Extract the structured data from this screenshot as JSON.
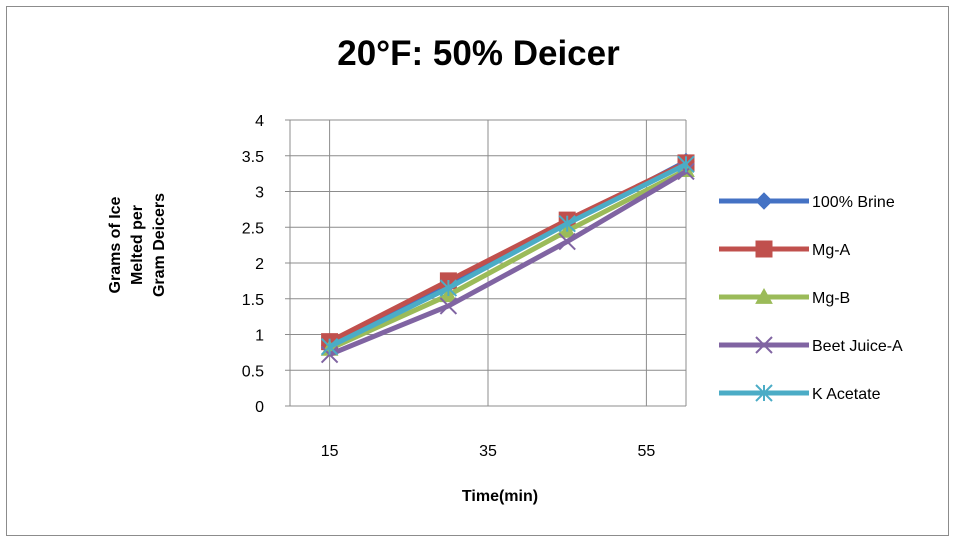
{
  "chart_data": {
    "type": "line",
    "title": "20°F: 50% Deicer",
    "xlabel": "Time(min)",
    "ylabel": "Grams of Ice\nMelted per\nGram Deicers",
    "x": [
      15,
      30,
      45,
      60
    ],
    "x_ticks": [
      "15",
      "35",
      "55"
    ],
    "x_tick_values": [
      15,
      35,
      55
    ],
    "xlim": [
      10,
      60
    ],
    "ylim": [
      0,
      4
    ],
    "y_ticks": [
      "0",
      "0.5",
      "1",
      "1.5",
      "2",
      "2.5",
      "3",
      "3.5",
      "4"
    ],
    "y_tick_values": [
      0,
      0.5,
      1,
      1.5,
      2,
      2.5,
      3,
      3.5,
      4
    ],
    "grid": true,
    "legend_position": "right",
    "series": [
      {
        "name": "100% Brine",
        "values": [
          0.85,
          1.7,
          2.55,
          3.42
        ],
        "color": "#4472C4",
        "marker": "diamond"
      },
      {
        "name": "Mg-A",
        "values": [
          0.9,
          1.75,
          2.6,
          3.4
        ],
        "color": "#C0504D",
        "marker": "square"
      },
      {
        "name": "Mg-B",
        "values": [
          0.8,
          1.55,
          2.45,
          3.3
        ],
        "color": "#9BBB59",
        "marker": "triangle"
      },
      {
        "name": "Beet Juice-A",
        "values": [
          0.72,
          1.4,
          2.3,
          3.28
        ],
        "color": "#8064A2",
        "marker": "x"
      },
      {
        "name": "K Acetate",
        "values": [
          0.83,
          1.65,
          2.55,
          3.38
        ],
        "color": "#4BACC6",
        "marker": "star"
      }
    ]
  }
}
